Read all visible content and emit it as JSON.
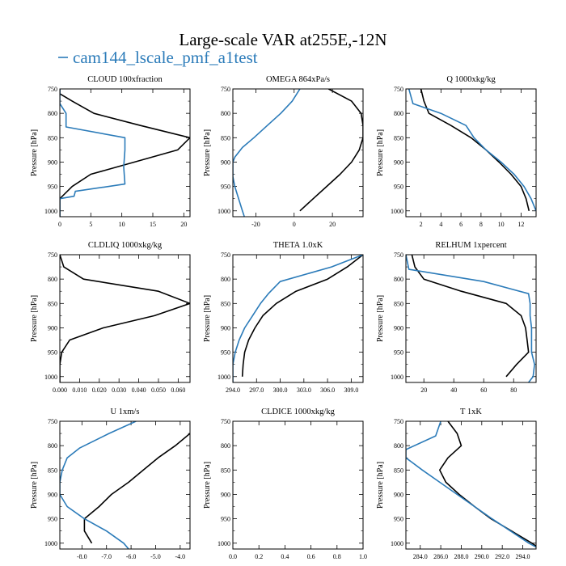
{
  "title": "Large-scale VAR at255E,-12N",
  "legend": {
    "label": "cam144_lscale_pmf_a1test",
    "color": "#2b7bb9"
  },
  "colors": {
    "series_a": "#000000",
    "series_b": "#2b7bb9"
  },
  "chart_data": [
    {
      "type": "line",
      "title": "CLOUD  100xfraction",
      "ylabel": "Pressure [hPa]",
      "xlim": [
        0,
        21
      ],
      "ylim": [
        1012,
        750
      ],
      "xticks": [
        0,
        5,
        10,
        15,
        20
      ],
      "xtick_labels": [
        "0",
        "5",
        "10",
        "15",
        "20"
      ],
      "yticks": [
        750,
        800,
        850,
        900,
        950,
        1000
      ],
      "ytick_labels": [
        "750",
        "800",
        "850",
        "900",
        "950",
        "1000"
      ],
      "series": [
        {
          "values": [
            [
              0,
              750
            ],
            [
              0,
              760
            ],
            [
              2,
              775
            ],
            [
              5.5,
              800
            ],
            [
              13,
              825
            ],
            [
              21,
              850
            ],
            [
              19,
              875
            ],
            [
              12,
              900
            ],
            [
              5,
              925
            ],
            [
              2,
              950
            ],
            [
              0,
              975
            ],
            [
              0,
              1012
            ]
          ]
        },
        {
          "values": [
            [
              0,
              750
            ],
            [
              0,
              780
            ],
            [
              1,
              800
            ],
            [
              1,
              828
            ],
            [
              10.5,
              850
            ],
            [
              10.5,
              875
            ],
            [
              10.3,
              910
            ],
            [
              10.5,
              945
            ],
            [
              2.5,
              960
            ],
            [
              2.3,
              970
            ],
            [
              0,
              975
            ],
            [
              0,
              1012
            ]
          ]
        }
      ]
    },
    {
      "type": "line",
      "title": "OMEGA  864xPa/s",
      "ylabel": "Pressure [hPa]",
      "xlim": [
        -32,
        36
      ],
      "ylim": [
        1012,
        750
      ],
      "xticks": [
        -20,
        0,
        20
      ],
      "xtick_labels": [
        "-20",
        "0",
        "20"
      ],
      "yticks": [
        750,
        800,
        850,
        900,
        950,
        1000
      ],
      "ytick_labels": [
        "750",
        "800",
        "850",
        "900",
        "950",
        "1000"
      ],
      "series": [
        {
          "values": [
            [
              18,
              750
            ],
            [
              30,
              775
            ],
            [
              35,
              800
            ],
            [
              36,
              825
            ],
            [
              36,
              850
            ],
            [
              34,
              875
            ],
            [
              30,
              900
            ],
            [
              24,
              925
            ],
            [
              17,
              950
            ],
            [
              10,
              975
            ],
            [
              3,
              1000
            ]
          ]
        },
        {
          "values": [
            [
              3,
              750
            ],
            [
              -1,
              775
            ],
            [
              -7,
              800
            ],
            [
              -14,
              825
            ],
            [
              -21,
              850
            ],
            [
              -27,
              870
            ],
            [
              -31,
              890
            ],
            [
              -32,
              900
            ],
            [
              -32,
              930
            ],
            [
              -31,
              950
            ],
            [
              -29,
              975
            ],
            [
              -27,
              1000
            ],
            [
              -26,
              1012
            ]
          ]
        }
      ]
    },
    {
      "type": "line",
      "title": "Q  1000xkg/kg",
      "ylabel": "Pressure [hPa]",
      "xlim": [
        0.5,
        13.5
      ],
      "ylim": [
        1012,
        750
      ],
      "xticks": [
        2,
        4,
        6,
        8,
        10,
        12
      ],
      "xtick_labels": [
        "2",
        "4",
        "6",
        "8",
        "10",
        "12"
      ],
      "yticks": [
        750,
        800,
        850,
        900,
        950,
        1000
      ],
      "ytick_labels": [
        "750",
        "800",
        "850",
        "900",
        "950",
        "1000"
      ],
      "series": [
        {
          "values": [
            [
              2,
              750
            ],
            [
              2.3,
              775
            ],
            [
              2.8,
              800
            ],
            [
              5,
              825
            ],
            [
              7,
              850
            ],
            [
              8.5,
              875
            ],
            [
              9.8,
              900
            ],
            [
              11,
              925
            ],
            [
              12,
              950
            ],
            [
              12.5,
              975
            ],
            [
              12.8,
              1000
            ]
          ]
        },
        {
          "values": [
            [
              0.8,
              750
            ],
            [
              1.2,
              780
            ],
            [
              4,
              800
            ],
            [
              6.5,
              825
            ],
            [
              7.3,
              850
            ],
            [
              8.5,
              875
            ],
            [
              10,
              900
            ],
            [
              11.3,
              925
            ],
            [
              12.3,
              950
            ],
            [
              13,
              975
            ],
            [
              13.5,
              1000
            ]
          ]
        }
      ]
    },
    {
      "type": "line",
      "title": "CLDLIQ  1000xkg/kg",
      "ylabel": "Pressure [hPa]",
      "xlim": [
        0,
        0.066
      ],
      "ylim": [
        1012,
        750
      ],
      "xticks": [
        0,
        0.01,
        0.02,
        0.03,
        0.04,
        0.05,
        0.06
      ],
      "xtick_labels": [
        "0.000",
        "0.010",
        "0.020",
        "0.030",
        "0.040",
        "0.050",
        "0.060"
      ],
      "yticks": [
        750,
        800,
        850,
        900,
        950,
        1000
      ],
      "ytick_labels": [
        "750",
        "800",
        "850",
        "900",
        "950",
        "1000"
      ],
      "series": [
        {
          "values": [
            [
              0,
              750
            ],
            [
              0.002,
              775
            ],
            [
              0.012,
              800
            ],
            [
              0.05,
              825
            ],
            [
              0.066,
              850
            ],
            [
              0.048,
              875
            ],
            [
              0.022,
              900
            ],
            [
              0.005,
              925
            ],
            [
              0.001,
              950
            ],
            [
              0,
              975
            ],
            [
              0,
              1012
            ]
          ]
        }
      ]
    },
    {
      "type": "line",
      "title": "THETA  1.0xK",
      "ylabel": "Pressure [hPa]",
      "xlim": [
        294,
        310.5
      ],
      "ylim": [
        1012,
        750
      ],
      "xticks": [
        294,
        297,
        300,
        303,
        306,
        309
      ],
      "xtick_labels": [
        "294.0",
        "297.0",
        "300.0",
        "303.0",
        "306.0",
        "309.0"
      ],
      "yticks": [
        750,
        800,
        850,
        900,
        950,
        1000
      ],
      "ytick_labels": [
        "750",
        "800",
        "850",
        "900",
        "950",
        "1000"
      ],
      "series": [
        {
          "values": [
            [
              310.5,
              750
            ],
            [
              308.5,
              775
            ],
            [
              306,
              800
            ],
            [
              302,
              825
            ],
            [
              299.5,
              850
            ],
            [
              297.8,
              875
            ],
            [
              296.8,
              900
            ],
            [
              296,
              925
            ],
            [
              295.5,
              950
            ],
            [
              295.3,
              975
            ],
            [
              295.2,
              1000
            ]
          ]
        },
        {
          "values": [
            [
              310.5,
              750
            ],
            [
              306.5,
              775
            ],
            [
              300,
              805
            ],
            [
              298.5,
              830
            ],
            [
              297.5,
              850
            ],
            [
              296.5,
              875
            ],
            [
              295.5,
              900
            ],
            [
              294.8,
              925
            ],
            [
              294.3,
              950
            ],
            [
              294,
              975
            ],
            [
              294,
              1012
            ]
          ]
        }
      ]
    },
    {
      "type": "line",
      "title": "RELHUM  1xpercent",
      "ylabel": "Pressure [hPa]",
      "xlim": [
        8,
        95
      ],
      "ylim": [
        1012,
        750
      ],
      "xticks": [
        20,
        40,
        60,
        80
      ],
      "xtick_labels": [
        "20",
        "40",
        "60",
        "80"
      ],
      "yticks": [
        750,
        800,
        850,
        900,
        950,
        1000
      ],
      "ytick_labels": [
        "750",
        "800",
        "850",
        "900",
        "950",
        "1000"
      ],
      "series": [
        {
          "values": [
            [
              12,
              750
            ],
            [
              14,
              775
            ],
            [
              20,
              800
            ],
            [
              45,
              825
            ],
            [
              75,
              850
            ],
            [
              85,
              875
            ],
            [
              88,
              900
            ],
            [
              89,
              925
            ],
            [
              90,
              950
            ],
            [
              82,
              975
            ],
            [
              75,
              1000
            ]
          ]
        },
        {
          "values": [
            [
              8,
              750
            ],
            [
              10,
              780
            ],
            [
              60,
              805
            ],
            [
              90,
              830
            ],
            [
              91,
              850
            ],
            [
              91,
              875
            ],
            [
              92,
              900
            ],
            [
              92,
              925
            ],
            [
              92,
              950
            ],
            [
              94,
              975
            ],
            [
              93,
              1000
            ],
            [
              90,
              1012
            ]
          ]
        }
      ]
    },
    {
      "type": "line",
      "title": "U  1xm/s",
      "ylabel": "Pressure [hPa]",
      "xlim": [
        -8.9,
        -3.6
      ],
      "ylim": [
        1012,
        750
      ],
      "xticks": [
        -8,
        -7,
        -6,
        -5,
        -4
      ],
      "xtick_labels": [
        "-8.0",
        "-7.0",
        "-6.0",
        "-5.0",
        "-4.0"
      ],
      "yticks": [
        750,
        800,
        850,
        900,
        950,
        1000
      ],
      "ytick_labels": [
        "750",
        "800",
        "850",
        "900",
        "950",
        "1000"
      ],
      "series": [
        {
          "values": [
            [
              -3.6,
              775
            ],
            [
              -4.2,
              800
            ],
            [
              -4.9,
              825
            ],
            [
              -5.5,
              850
            ],
            [
              -6.1,
              875
            ],
            [
              -6.8,
              900
            ],
            [
              -7.3,
              925
            ],
            [
              -7.9,
              950
            ],
            [
              -7.9,
              975
            ],
            [
              -7.6,
              1000
            ]
          ]
        },
        {
          "values": [
            [
              -5.8,
              750
            ],
            [
              -6.9,
              775
            ],
            [
              -8.1,
              805
            ],
            [
              -8.6,
              825
            ],
            [
              -8.8,
              850
            ],
            [
              -8.9,
              875
            ],
            [
              -8.9,
              900
            ],
            [
              -8.6,
              925
            ],
            [
              -7.9,
              950
            ],
            [
              -7,
              975
            ],
            [
              -6.3,
              1000
            ],
            [
              -6.1,
              1012
            ]
          ]
        }
      ]
    },
    {
      "type": "line",
      "title": "CLDICE  1000xkg/kg",
      "ylabel": "Pressure [hPa]",
      "xlim": [
        0,
        1
      ],
      "ylim": [
        1012,
        750
      ],
      "xticks": [
        0,
        0.2,
        0.4,
        0.6,
        0.8,
        1.0
      ],
      "xtick_labels": [
        "0.0",
        "0.2",
        "0.4",
        "0.6",
        "0.8",
        "1.0"
      ],
      "yticks": [
        750,
        800,
        850,
        900,
        950,
        1000
      ],
      "ytick_labels": [
        "750",
        "800",
        "850",
        "900",
        "950",
        "1000"
      ],
      "series": []
    },
    {
      "type": "line",
      "title": "T  1xK",
      "ylabel": "Pressure [hPa]",
      "xlim": [
        282.6,
        295.3
      ],
      "ylim": [
        1012,
        750
      ],
      "xticks": [
        284,
        286,
        288,
        290,
        292,
        294
      ],
      "xtick_labels": [
        "284.0",
        "286.0",
        "288.0",
        "290.0",
        "292.0",
        "294.0"
      ],
      "yticks": [
        750,
        800,
        850,
        900,
        950,
        1000
      ],
      "ytick_labels": [
        "750",
        "800",
        "850",
        "900",
        "950",
        "1000"
      ],
      "series": [
        {
          "values": [
            [
              286.7,
              750
            ],
            [
              287.6,
              775
            ],
            [
              288,
              800
            ],
            [
              286.7,
              825
            ],
            [
              285.9,
              850
            ],
            [
              286.5,
              875
            ],
            [
              287.8,
              900
            ],
            [
              289.3,
              925
            ],
            [
              290.9,
              950
            ],
            [
              292.9,
              975
            ],
            [
              294.9,
              1000
            ],
            [
              295.3,
              1006
            ]
          ]
        },
        {
          "values": [
            [
              286,
              750
            ],
            [
              285.5,
              780
            ],
            [
              282.6,
              808
            ],
            [
              282.6,
              825
            ],
            [
              284.2,
              850
            ],
            [
              285.9,
              875
            ],
            [
              287.6,
              900
            ],
            [
              289.3,
              925
            ],
            [
              291,
              950
            ],
            [
              292.8,
              975
            ],
            [
              294.6,
              1000
            ],
            [
              295.3,
              1008
            ]
          ]
        }
      ]
    }
  ]
}
